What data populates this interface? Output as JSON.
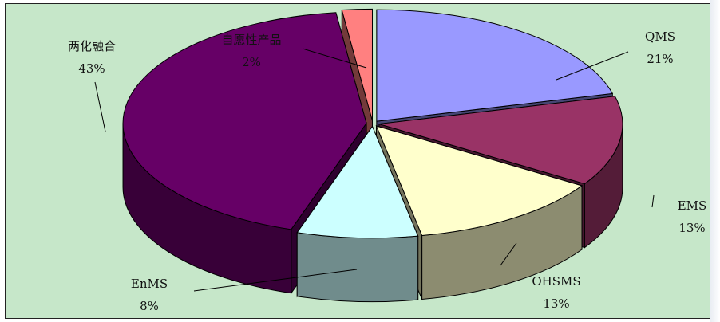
{
  "chart_data": {
    "type": "pie",
    "style": "3d-exploded",
    "labels": [
      "QMS",
      "EMS",
      "OHSMS",
      "EnMS",
      "两化融合",
      "自愿性产品"
    ],
    "values": [
      21,
      13,
      13,
      8,
      43,
      2
    ],
    "value_labels": [
      "21%",
      "13%",
      "13%",
      "8%",
      "43%",
      "2%"
    ],
    "colors": [
      "#9999ff",
      "#993366",
      "#ffffcc",
      "#ccffff",
      "#660066",
      "#ff8080"
    ]
  }
}
